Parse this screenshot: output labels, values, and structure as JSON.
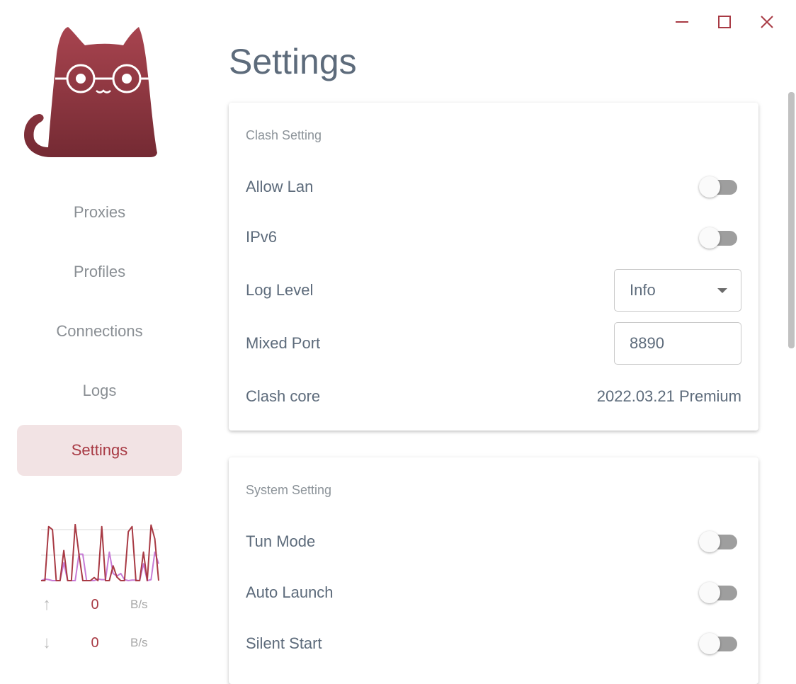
{
  "window": {
    "minimize_icon": "minimize-icon",
    "maximize_icon": "maximize-icon",
    "close_icon": "close-icon",
    "accent": "#a83a44"
  },
  "sidebar": {
    "logo": "cat-with-glasses-logo",
    "items": [
      {
        "label": "Proxies",
        "active": false
      },
      {
        "label": "Profiles",
        "active": false
      },
      {
        "label": "Connections",
        "active": false
      },
      {
        "label": "Logs",
        "active": false
      },
      {
        "label": "Settings",
        "active": true
      }
    ],
    "traffic": {
      "upload": {
        "value": "0",
        "unit": "B/s"
      },
      "download": {
        "value": "0",
        "unit": "B/s"
      }
    }
  },
  "chart_data": {
    "type": "line",
    "grid": true,
    "series": [
      {
        "color": "#a83a44",
        "values": [
          0,
          0,
          106,
          100,
          0,
          0,
          59,
          0,
          0,
          110,
          52,
          0,
          0,
          0,
          6,
          0,
          106,
          0,
          0,
          29,
          7,
          0,
          0,
          96,
          106,
          0,
          0,
          56,
          0,
          109,
          82,
          0
        ]
      },
      {
        "color": "#c77bd6",
        "values": [
          0,
          3,
          2,
          0,
          0,
          0,
          35,
          0,
          0,
          0,
          52,
          52,
          0,
          0,
          0,
          3,
          2,
          2,
          56,
          14,
          9,
          14,
          2,
          0,
          1,
          1,
          0,
          33,
          0,
          2,
          56,
          33
        ]
      }
    ]
  },
  "main": {
    "title": "Settings",
    "clash": {
      "title": "Clash Setting",
      "allow_lan": {
        "label": "Allow Lan",
        "on": false
      },
      "ipv6": {
        "label": "IPv6",
        "on": false
      },
      "log_level": {
        "label": "Log Level",
        "value": "Info"
      },
      "mixed_port": {
        "label": "Mixed Port",
        "value": "8890"
      },
      "core": {
        "label": "Clash core",
        "value": "2022.03.21 Premium"
      }
    },
    "system": {
      "title": "System Setting",
      "tun_mode": {
        "label": "Tun Mode",
        "on": false
      },
      "auto_launch": {
        "label": "Auto Launch",
        "on": false
      },
      "silent_start": {
        "label": "Silent Start",
        "on": false
      }
    }
  }
}
